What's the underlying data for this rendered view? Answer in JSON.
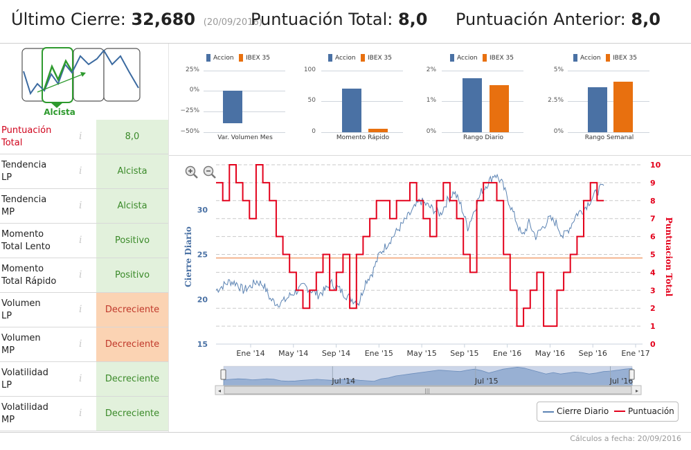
{
  "header": {
    "last_close_label": "Último Cierre:",
    "last_close_value": "32,680",
    "last_close_date": "(20/09/2016)",
    "total_score_label": "Puntuación Total:",
    "total_score_value": "8,0",
    "prev_score_label": "Puntuación Anterior:",
    "prev_score_value": "8,0"
  },
  "trend_badge": "Alcista",
  "rows": [
    {
      "label_1": "Puntuación",
      "label_2": "Total",
      "value": "8,0",
      "style": "green",
      "label_color": "#d0021b"
    },
    {
      "label_1": "Tendencia",
      "label_2": "LP",
      "value": "Alcista",
      "style": "green"
    },
    {
      "label_1": "Tendencia",
      "label_2": "MP",
      "value": "Alcista",
      "style": "green"
    },
    {
      "label_1": "Momento",
      "label_2": "Total Lento",
      "value": "Positivo",
      "style": "green"
    },
    {
      "label_1": "Momento",
      "label_2": "Total Rápido",
      "value": "Positivo",
      "style": "green"
    },
    {
      "label_1": "Volumen",
      "label_2": "LP",
      "value": "Decreciente",
      "style": "orange"
    },
    {
      "label_1": "Volumen",
      "label_2": "MP",
      "value": "Decreciente",
      "style": "orange"
    },
    {
      "label_1": "Volatilidad",
      "label_2": "LP",
      "value": "Decreciente",
      "style": "green"
    },
    {
      "label_1": "Volatilidad",
      "label_2": "MP",
      "value": "Decreciente",
      "style": "green"
    }
  ],
  "info_glyph": "i",
  "colors": {
    "accion": "#4a71a4",
    "ibex": "#e8700f",
    "score_line": "#e3001b",
    "price_line": "#5b83b3",
    "ref_line": "#f0a070"
  },
  "mini_charts": [
    {
      "legend": [
        "Accion",
        "IBEX 35"
      ],
      "ticks": [
        "25%",
        "0%",
        "−25%",
        "−50%"
      ],
      "xlabel": "Var. Volumen Mes",
      "values": [
        -40,
        null
      ]
    },
    {
      "legend": [
        "Accion",
        "IBEX 35"
      ],
      "ticks": [
        "100",
        "50",
        "0"
      ],
      "xlabel": "Momento Rápido",
      "values": [
        68,
        5
      ]
    },
    {
      "legend": [
        "Accion",
        "IBEX 35"
      ],
      "ticks": [
        "2%",
        "1%",
        "0%"
      ],
      "xlabel": "Rango Diario",
      "values": [
        1.7,
        1.5
      ]
    },
    {
      "legend": [
        "Accion",
        "IBEX 35"
      ],
      "ticks": [
        "5%",
        "2.5%",
        "0%"
      ],
      "xlabel": "Rango Semanal",
      "values": [
        3.5,
        4.0
      ]
    }
  ],
  "chart_data": {
    "type": "line",
    "left_axis_title": "Cierre Diario",
    "right_axis_title": "Puntuacion Total",
    "left_ticks": [
      "30",
      "25",
      "20",
      "15"
    ],
    "right_ticks": [
      "10",
      "9",
      "8",
      "7",
      "6",
      "5",
      "4",
      "3",
      "2",
      "1",
      "0"
    ],
    "x_ticks": [
      "Ene '14",
      "May '14",
      "Sep '14",
      "Ene '15",
      "May '15",
      "Sep '15",
      "Ene '16",
      "May '16",
      "Sep '16",
      "Ene '17"
    ],
    "navigator_labels": [
      "Jul '14",
      "Jul '15",
      "Jul '16"
    ],
    "ylim_left": [
      15,
      35
    ],
    "ylim_right": [
      0,
      10
    ],
    "reference_line_score": 4.8,
    "series": [
      {
        "name": "Cierre Diario",
        "values": [
          21,
          21.5,
          22,
          21.8,
          21,
          21.4,
          22,
          21.6,
          20,
          19.5,
          19.8,
          20.5,
          21,
          21.5,
          21,
          20.5,
          21,
          21.8,
          21.2,
          20.5,
          20,
          19.6,
          22,
          23,
          25,
          26,
          27,
          28,
          29,
          30,
          31,
          30.5,
          30,
          29.5,
          31,
          32,
          30.5,
          28,
          30,
          32,
          33,
          34,
          33,
          31,
          29,
          27,
          28.5,
          27,
          28,
          29,
          28.5,
          27,
          28,
          29.5,
          30,
          31,
          32,
          32.68
        ]
      },
      {
        "name": "Puntuación",
        "values": [
          9,
          8,
          10,
          9,
          8,
          7,
          10,
          9,
          8,
          6,
          5,
          4,
          3,
          2,
          3,
          4,
          5,
          3,
          4,
          5,
          2,
          5,
          6,
          7,
          8,
          8,
          7,
          8,
          8,
          9,
          8,
          7,
          6,
          8,
          9,
          8,
          7,
          5,
          4,
          8,
          9,
          9,
          8,
          5,
          3,
          1,
          2,
          3,
          4,
          1,
          1,
          3,
          4,
          5,
          6,
          8,
          9,
          8
        ]
      }
    ]
  },
  "legend": {
    "price": "Cierre Diario",
    "score": "Puntuación"
  },
  "footer": "Cálculos a fecha: 20/09/2016"
}
